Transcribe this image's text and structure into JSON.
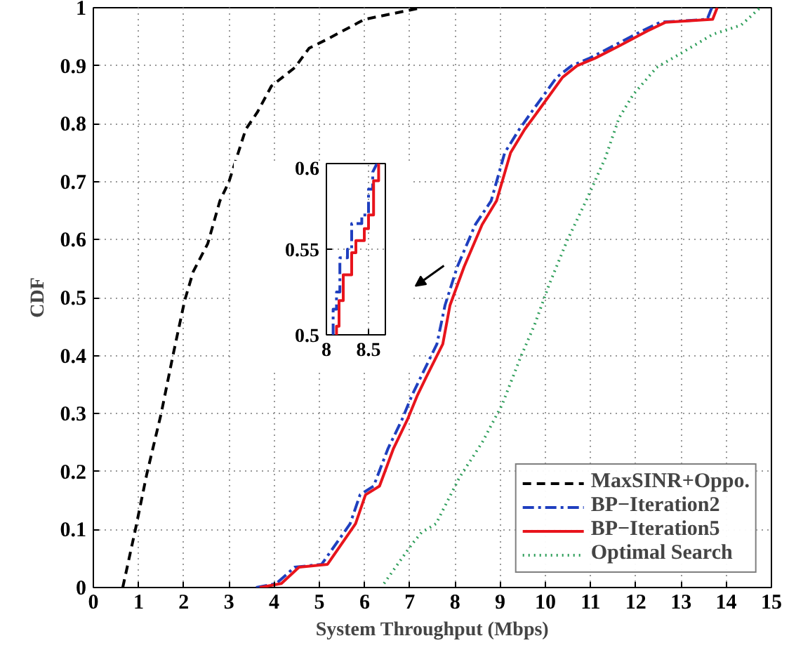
{
  "chart_data": [
    {
      "type": "line",
      "xlabel": "System Throughput (Mbps)",
      "ylabel": "CDF",
      "xlim": [
        0,
        15
      ],
      "ylim": [
        0,
        1
      ],
      "xticks": [
        0,
        1,
        2,
        3,
        4,
        5,
        6,
        7,
        8,
        9,
        10,
        11,
        12,
        13,
        14,
        15
      ],
      "yticks": [
        0,
        0.1,
        0.2,
        0.3,
        0.4,
        0.5,
        0.6,
        0.7,
        0.8,
        0.9,
        1
      ],
      "grid": true,
      "legend": "bottom right",
      "series": [
        {
          "name": "MaxSINR+Oppo.",
          "color": "#000000",
          "line_style": "dashed",
          "x": [
            0.65,
            0.93,
            1.18,
            1.5,
            1.76,
            2.02,
            2.21,
            2.53,
            2.8,
            3.0,
            3.37,
            3.63,
            3.94,
            4.46,
            4.77,
            5.18,
            6.0,
            7.26
          ],
          "values": [
            0,
            0.1,
            0.195,
            0.3,
            0.4,
            0.495,
            0.545,
            0.593,
            0.667,
            0.7,
            0.79,
            0.82,
            0.865,
            0.897,
            0.93,
            0.946,
            0.98,
            1.0
          ]
        },
        {
          "name": "BP−Iteration2",
          "color": "#1f3fbf",
          "line_style": "dashdot",
          "x": [
            3.6,
            4.05,
            4.45,
            5.05,
            5.68,
            5.9,
            6.2,
            6.52,
            6.83,
            7.04,
            7.25,
            7.6,
            7.78,
            8.05,
            8.45,
            8.8,
            9.1,
            9.42,
            9.72,
            10.25,
            10.58,
            10.98,
            11.5,
            12.14,
            12.54,
            13.58,
            13.68
          ],
          "values": [
            0,
            0.007,
            0.035,
            0.04,
            0.11,
            0.16,
            0.175,
            0.24,
            0.29,
            0.33,
            0.364,
            0.42,
            0.487,
            0.553,
            0.626,
            0.667,
            0.75,
            0.79,
            0.823,
            0.88,
            0.9,
            0.913,
            0.934,
            0.96,
            0.975,
            0.98,
            1.0
          ]
        },
        {
          "name": "BP−Iteration5",
          "color": "#e8141c",
          "line_style": "solid",
          "x": [
            3.68,
            4.16,
            4.55,
            5.18,
            5.8,
            6.02,
            6.33,
            6.64,
            6.95,
            7.16,
            7.37,
            7.73,
            7.89,
            8.2,
            8.6,
            8.92,
            9.23,
            9.54,
            9.85,
            10.38,
            10.7,
            11.1,
            11.63,
            12.26,
            12.66,
            13.7,
            13.8
          ],
          "values": [
            0,
            0.007,
            0.035,
            0.04,
            0.11,
            0.16,
            0.175,
            0.24,
            0.29,
            0.33,
            0.364,
            0.42,
            0.487,
            0.553,
            0.626,
            0.667,
            0.75,
            0.79,
            0.823,
            0.88,
            0.9,
            0.913,
            0.934,
            0.96,
            0.975,
            0.98,
            1.0
          ]
        },
        {
          "name": "Optimal Search",
          "color": "#2e9e5a",
          "line_style": "dotted",
          "x": [
            6.43,
            7.05,
            7.26,
            7.58,
            8.1,
            8.6,
            9.04,
            9.45,
            9.76,
            10.07,
            10.49,
            10.9,
            11.32,
            11.63,
            11.94,
            12.46,
            12.97,
            13.7,
            14.33,
            14.75
          ],
          "values": [
            0.007,
            0.075,
            0.095,
            0.11,
            0.19,
            0.25,
            0.315,
            0.397,
            0.453,
            0.52,
            0.6,
            0.667,
            0.74,
            0.81,
            0.85,
            0.897,
            0.92,
            0.954,
            0.97,
            1.0
          ]
        }
      ]
    },
    {
      "type": "line",
      "xlim": [
        8,
        8.7
      ],
      "ylim": [
        0.5,
        0.6
      ],
      "xticks": [
        8,
        8.5
      ],
      "yticks": [
        0.5,
        0.55,
        0.6
      ],
      "grid": true,
      "series": [
        {
          "color": "#1f3fbf",
          "line_style": "dashdot",
          "x": [
            8.08,
            8.08,
            8.12,
            8.12,
            8.16,
            8.16,
            8.25,
            8.25,
            8.3,
            8.3,
            8.42,
            8.42,
            8.5,
            8.5,
            8.55,
            8.55,
            8.6
          ],
          "values": [
            0.5,
            0.515,
            0.515,
            0.525,
            0.525,
            0.545,
            0.545,
            0.55,
            0.55,
            0.565,
            0.565,
            0.57,
            0.57,
            0.585,
            0.585,
            0.595,
            0.6
          ]
        },
        {
          "color": "#e8141c",
          "line_style": "solid",
          "x": [
            8.12,
            8.12,
            8.15,
            8.15,
            8.2,
            8.2,
            8.3,
            8.3,
            8.35,
            8.35,
            8.45,
            8.45,
            8.5,
            8.5,
            8.56,
            8.56,
            8.62,
            8.62
          ],
          "values": [
            0.5,
            0.505,
            0.505,
            0.52,
            0.52,
            0.535,
            0.535,
            0.548,
            0.548,
            0.555,
            0.555,
            0.562,
            0.562,
            0.57,
            0.57,
            0.59,
            0.59,
            0.6
          ]
        }
      ]
    }
  ]
}
